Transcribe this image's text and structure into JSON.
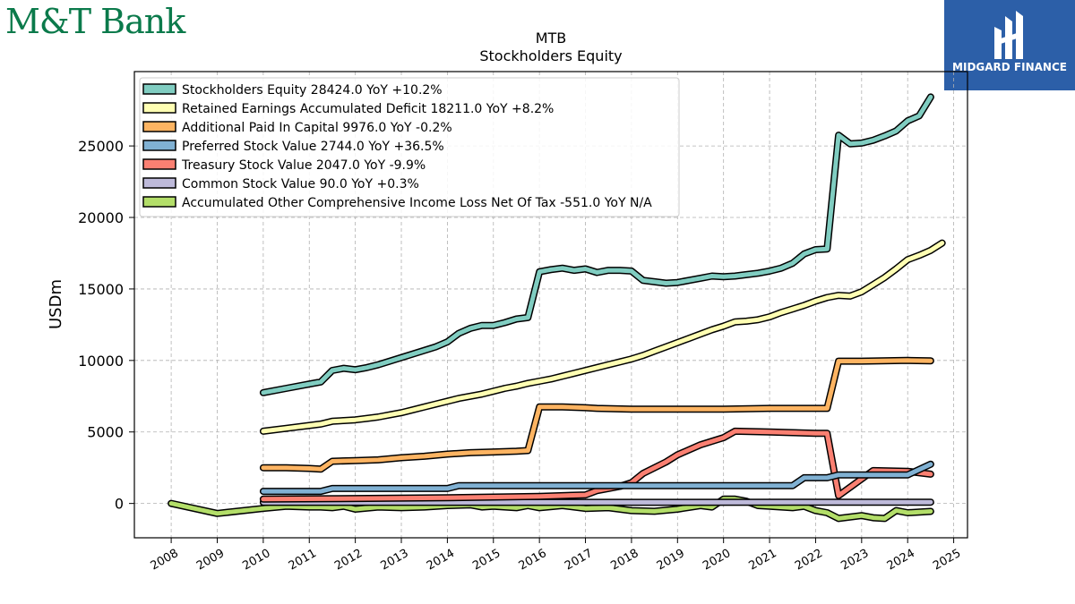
{
  "header": {
    "brand_left": "M&T Bank",
    "brand_right": "MIDGARD FINANCE"
  },
  "chart_data": {
    "type": "line",
    "title": "MTB",
    "subtitle": "Stockholders  Equity",
    "ylabel": "USDm",
    "xlabel": "",
    "x_ticks": [
      "2008",
      "2009",
      "2010",
      "2011",
      "2012",
      "2013",
      "2014",
      "2015",
      "2016",
      "2017",
      "2018",
      "2019",
      "2020",
      "2021",
      "2022",
      "2023",
      "2024",
      "2025"
    ],
    "y_ticks": [
      "0",
      "5000",
      "10000",
      "15000",
      "20000",
      "25000"
    ],
    "xlim": [
      2007.2,
      2025.3
    ],
    "ylim": [
      -2400,
      30200
    ],
    "grid": true,
    "legend_position": "top-left",
    "series": [
      {
        "name": "Stockholders Equity  28424.0 YoY +10.2%",
        "color": "#80cdc1",
        "points": [
          [
            2010.0,
            7750
          ],
          [
            2010.5,
            8050
          ],
          [
            2011.0,
            8350
          ],
          [
            2011.25,
            8500
          ],
          [
            2011.5,
            9300
          ],
          [
            2011.75,
            9450
          ],
          [
            2012.0,
            9350
          ],
          [
            2012.25,
            9500
          ],
          [
            2012.5,
            9700
          ],
          [
            2012.75,
            9950
          ],
          [
            2013.0,
            10200
          ],
          [
            2013.25,
            10450
          ],
          [
            2013.5,
            10700
          ],
          [
            2013.75,
            10950
          ],
          [
            2014.0,
            11300
          ],
          [
            2014.25,
            11900
          ],
          [
            2014.5,
            12250
          ],
          [
            2014.75,
            12450
          ],
          [
            2015.0,
            12450
          ],
          [
            2015.25,
            12650
          ],
          [
            2015.5,
            12900
          ],
          [
            2015.75,
            13000
          ],
          [
            2016.0,
            16200
          ],
          [
            2016.25,
            16350
          ],
          [
            2016.5,
            16450
          ],
          [
            2016.75,
            16300
          ],
          [
            2017.0,
            16400
          ],
          [
            2017.25,
            16150
          ],
          [
            2017.5,
            16300
          ],
          [
            2017.75,
            16300
          ],
          [
            2018.0,
            16250
          ],
          [
            2018.25,
            15600
          ],
          [
            2018.5,
            15500
          ],
          [
            2018.75,
            15400
          ],
          [
            2019.0,
            15450
          ],
          [
            2019.25,
            15600
          ],
          [
            2019.5,
            15750
          ],
          [
            2019.75,
            15900
          ],
          [
            2020.0,
            15850
          ],
          [
            2020.25,
            15900
          ],
          [
            2020.5,
            16000
          ],
          [
            2020.75,
            16100
          ],
          [
            2021.0,
            16250
          ],
          [
            2021.25,
            16450
          ],
          [
            2021.5,
            16800
          ],
          [
            2021.75,
            17450
          ],
          [
            2022.0,
            17750
          ],
          [
            2022.25,
            17800
          ],
          [
            2022.5,
            25750
          ],
          [
            2022.75,
            25150
          ],
          [
            2023.0,
            25200
          ],
          [
            2023.25,
            25400
          ],
          [
            2023.5,
            25700
          ],
          [
            2023.75,
            26050
          ],
          [
            2024.0,
            26750
          ],
          [
            2024.25,
            27100
          ],
          [
            2024.5,
            28424
          ]
        ]
      },
      {
        "name": "Retained Earnings Accumulated Deficit  18211.0 YoY +8.2%",
        "color": "#ffffb3",
        "points": [
          [
            2010.0,
            5050
          ],
          [
            2010.5,
            5250
          ],
          [
            2011.0,
            5450
          ],
          [
            2011.25,
            5550
          ],
          [
            2011.5,
            5750
          ],
          [
            2011.75,
            5800
          ],
          [
            2012.0,
            5850
          ],
          [
            2012.25,
            5950
          ],
          [
            2012.5,
            6050
          ],
          [
            2012.75,
            6200
          ],
          [
            2013.0,
            6350
          ],
          [
            2013.25,
            6550
          ],
          [
            2013.5,
            6750
          ],
          [
            2013.75,
            6950
          ],
          [
            2014.0,
            7150
          ],
          [
            2014.25,
            7350
          ],
          [
            2014.5,
            7500
          ],
          [
            2014.75,
            7650
          ],
          [
            2015.0,
            7850
          ],
          [
            2015.25,
            8050
          ],
          [
            2015.5,
            8200
          ],
          [
            2015.75,
            8400
          ],
          [
            2016.0,
            8550
          ],
          [
            2016.25,
            8700
          ],
          [
            2016.5,
            8900
          ],
          [
            2016.75,
            9100
          ],
          [
            2017.0,
            9300
          ],
          [
            2017.25,
            9500
          ],
          [
            2017.5,
            9700
          ],
          [
            2017.75,
            9900
          ],
          [
            2018.0,
            10100
          ],
          [
            2018.25,
            10350
          ],
          [
            2018.5,
            10650
          ],
          [
            2018.75,
            10950
          ],
          [
            2019.0,
            11250
          ],
          [
            2019.25,
            11550
          ],
          [
            2019.5,
            11850
          ],
          [
            2019.75,
            12150
          ],
          [
            2020.0,
            12400
          ],
          [
            2020.25,
            12700
          ],
          [
            2020.5,
            12750
          ],
          [
            2020.75,
            12850
          ],
          [
            2021.0,
            13050
          ],
          [
            2021.25,
            13350
          ],
          [
            2021.5,
            13600
          ],
          [
            2021.75,
            13850
          ],
          [
            2022.0,
            14150
          ],
          [
            2022.25,
            14400
          ],
          [
            2022.5,
            14550
          ],
          [
            2022.75,
            14500
          ],
          [
            2023.0,
            14800
          ],
          [
            2023.25,
            15300
          ],
          [
            2023.5,
            15800
          ],
          [
            2023.75,
            16400
          ],
          [
            2024.0,
            17050
          ],
          [
            2024.25,
            17350
          ],
          [
            2024.5,
            17700
          ],
          [
            2024.75,
            18211
          ]
        ]
      },
      {
        "name": "Additional Paid In Capital  9976.0 YoY -0.2%",
        "color": "#fdb462",
        "points": [
          [
            2010.0,
            2500
          ],
          [
            2010.5,
            2500
          ],
          [
            2011.0,
            2450
          ],
          [
            2011.25,
            2400
          ],
          [
            2011.5,
            2950
          ],
          [
            2012.0,
            3000
          ],
          [
            2012.5,
            3050
          ],
          [
            2013.0,
            3200
          ],
          [
            2013.5,
            3300
          ],
          [
            2014.0,
            3450
          ],
          [
            2014.5,
            3550
          ],
          [
            2015.0,
            3600
          ],
          [
            2015.5,
            3650
          ],
          [
            2015.75,
            3700
          ],
          [
            2016.0,
            6750
          ],
          [
            2016.5,
            6750
          ],
          [
            2017.0,
            6700
          ],
          [
            2017.25,
            6650
          ],
          [
            2018.0,
            6600
          ],
          [
            2019.0,
            6600
          ],
          [
            2020.0,
            6600
          ],
          [
            2021.0,
            6650
          ],
          [
            2022.0,
            6650
          ],
          [
            2022.25,
            6650
          ],
          [
            2022.5,
            9950
          ],
          [
            2023.0,
            9950
          ],
          [
            2024.0,
            10000
          ],
          [
            2024.5,
            9976
          ]
        ]
      },
      {
        "name": "Preferred Stock Value  2744.0 YoY +36.5%",
        "color": "#80b1d3",
        "points": [
          [
            2010.0,
            850
          ],
          [
            2011.25,
            850
          ],
          [
            2011.5,
            1050
          ],
          [
            2014.0,
            1050
          ],
          [
            2014.25,
            1250
          ],
          [
            2018.0,
            1250
          ],
          [
            2019.0,
            1250
          ],
          [
            2020.0,
            1250
          ],
          [
            2021.5,
            1250
          ],
          [
            2021.75,
            1800
          ],
          [
            2022.25,
            1800
          ],
          [
            2022.5,
            2000
          ],
          [
            2024.0,
            2000
          ],
          [
            2024.5,
            2744
          ]
        ]
      },
      {
        "name": "Treasury Stock Value  2047.0 YoY -9.9%",
        "color": "#fb8072",
        "points": [
          [
            2010.0,
            300
          ],
          [
            2012.0,
            350
          ],
          [
            2014.0,
            400
          ],
          [
            2015.0,
            450
          ],
          [
            2016.0,
            500
          ],
          [
            2017.0,
            600
          ],
          [
            2017.25,
            900
          ],
          [
            2017.75,
            1200
          ],
          [
            2018.0,
            1450
          ],
          [
            2018.25,
            2100
          ],
          [
            2018.75,
            2900
          ],
          [
            2019.0,
            3400
          ],
          [
            2019.5,
            4100
          ],
          [
            2020.0,
            4600
          ],
          [
            2020.25,
            5050
          ],
          [
            2021.0,
            5000
          ],
          [
            2021.5,
            4950
          ],
          [
            2022.0,
            4900
          ],
          [
            2022.25,
            4900
          ],
          [
            2022.5,
            550
          ],
          [
            2023.25,
            2300
          ],
          [
            2024.0,
            2250
          ],
          [
            2024.5,
            2047
          ]
        ]
      },
      {
        "name": "Common Stock Value  90.0 YoY +0.3%",
        "color": "#bebada",
        "points": [
          [
            2010.0,
            80
          ],
          [
            2013.0,
            80
          ],
          [
            2016.0,
            80
          ],
          [
            2019.0,
            80
          ],
          [
            2022.0,
            90
          ],
          [
            2024.5,
            90
          ]
        ]
      },
      {
        "name": "Accumulated Other Comprehensive Income Loss Net Of Tax  -551.0 YoY N/A",
        "color": "#b3de69",
        "points": [
          [
            2008.0,
            0
          ],
          [
            2009.0,
            -700
          ],
          [
            2010.0,
            -350
          ],
          [
            2010.5,
            -200
          ],
          [
            2011.0,
            -250
          ],
          [
            2011.25,
            -250
          ],
          [
            2011.5,
            -300
          ],
          [
            2011.75,
            -200
          ],
          [
            2012.0,
            -400
          ],
          [
            2012.5,
            -250
          ],
          [
            2013.0,
            -300
          ],
          [
            2013.5,
            -250
          ],
          [
            2014.0,
            -150
          ],
          [
            2014.5,
            -100
          ],
          [
            2014.75,
            -250
          ],
          [
            2015.0,
            -200
          ],
          [
            2015.5,
            -300
          ],
          [
            2015.75,
            -150
          ],
          [
            2016.0,
            -300
          ],
          [
            2016.5,
            -150
          ],
          [
            2017.0,
            -350
          ],
          [
            2017.5,
            -300
          ],
          [
            2018.0,
            -500
          ],
          [
            2018.5,
            -550
          ],
          [
            2019.0,
            -400
          ],
          [
            2019.5,
            -150
          ],
          [
            2019.75,
            -250
          ],
          [
            2020.0,
            300
          ],
          [
            2020.25,
            300
          ],
          [
            2020.5,
            150
          ],
          [
            2020.75,
            -150
          ],
          [
            2021.0,
            -200
          ],
          [
            2021.5,
            -300
          ],
          [
            2021.75,
            -200
          ],
          [
            2022.0,
            -500
          ],
          [
            2022.25,
            -650
          ],
          [
            2022.5,
            -1050
          ],
          [
            2023.0,
            -850
          ],
          [
            2023.25,
            -1000
          ],
          [
            2023.5,
            -1050
          ],
          [
            2023.75,
            -500
          ],
          [
            2024.0,
            -650
          ],
          [
            2024.5,
            -551
          ]
        ]
      }
    ]
  }
}
